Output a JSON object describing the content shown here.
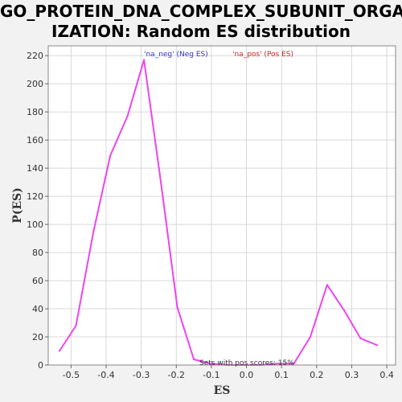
{
  "chart_data": {
    "type": "line",
    "title_line1": "GO_PROTEIN_DNA_COMPLEX_SUBUNIT_ORGAN",
    "title_line2": "IZATION: Random ES distribution",
    "xlabel": "ES",
    "ylabel": "P(ES)",
    "xlim": [
      -0.565,
      0.425
    ],
    "ylim": [
      0,
      227
    ],
    "xticks": [
      -0.5,
      -0.4,
      -0.3,
      -0.2,
      -0.1,
      0.0,
      0.1,
      0.2,
      0.3,
      0.4
    ],
    "xtick_labels": [
      "-0.5",
      "-0.4",
      "-0.3",
      "-0.2",
      "-0.1",
      "0.0",
      "0.1",
      "0.2",
      "0.3",
      "0.4"
    ],
    "yticks": [
      0,
      20,
      40,
      60,
      80,
      100,
      120,
      140,
      160,
      180,
      200,
      220
    ],
    "ytick_labels": [
      "0",
      "20",
      "40",
      "60",
      "80",
      "100",
      "120",
      "140",
      "160",
      "180",
      "200",
      "220"
    ],
    "grid": true,
    "legend": [
      {
        "label": "'na_neg' (Neg ES)",
        "color": "#3333cc"
      },
      {
        "label": "'na_pos' (Pos ES)",
        "color": "#cc2222"
      }
    ],
    "legend_placement": "top",
    "annotation": "Sets with pos scores: 15%",
    "series": [
      {
        "color": "#ee44ee",
        "x": [
          -0.533,
          -0.486,
          -0.436,
          -0.388,
          -0.339,
          -0.292,
          -0.244,
          -0.197,
          -0.15,
          -0.103,
          -0.055,
          -0.008,
          0.04,
          0.087,
          0.135,
          0.182,
          0.23,
          0.278,
          0.325,
          0.373
        ],
        "y": [
          10,
          28,
          95,
          149,
          177,
          217,
          130,
          41,
          4,
          1,
          0,
          0,
          0,
          1,
          1,
          20,
          57,
          39,
          19,
          14
        ]
      }
    ]
  }
}
